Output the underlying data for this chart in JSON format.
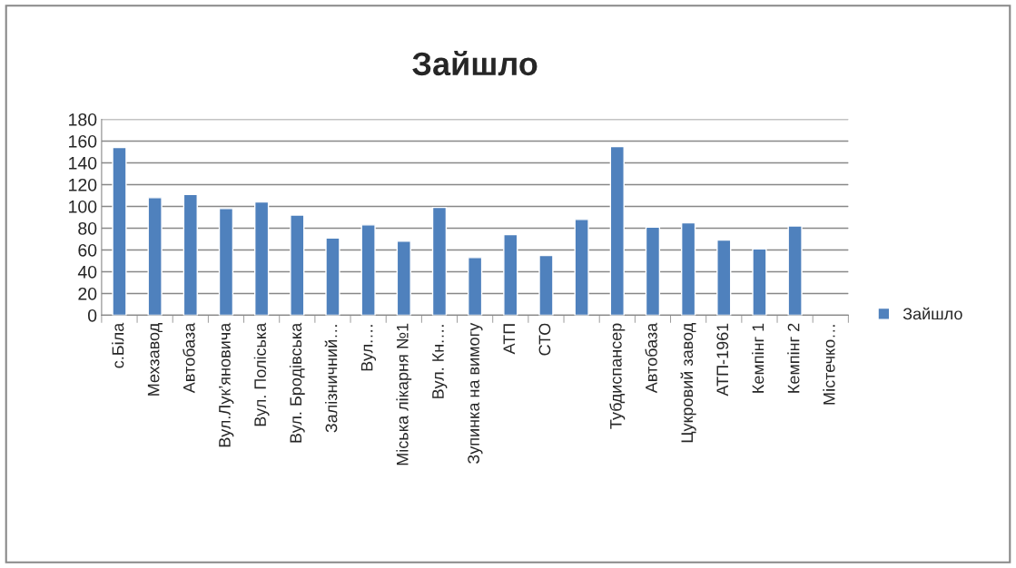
{
  "chart_data": {
    "type": "bar",
    "title": "Зайшло",
    "categories": [
      "с.Біла",
      "Мехзавод",
      "Автобаза",
      "Вул.Лук’яновича",
      "Вул. Поліська",
      "Вул. Бродівська",
      "Залізничний…",
      "Вул.…",
      "Міська лікарня №1",
      "Вул. Кн.…",
      "Зупинка на вимогу",
      "АТП",
      "СТО",
      null,
      "Тубдиспансер",
      "Автобаза",
      "Цукровий завод",
      "АТП-1961",
      "Кемпінг 1",
      "Кемпінг 2",
      "Містечко…"
    ],
    "series": [
      {
        "name": "Зайшло",
        "color": "#4f81bd",
        "values": [
          154,
          108,
          111,
          98,
          104,
          92,
          71,
          83,
          68,
          99,
          53,
          74,
          55,
          88,
          155,
          81,
          85,
          69,
          61,
          82,
          null
        ]
      }
    ],
    "ylim": [
      0,
      180
    ],
    "yticks": [
      0,
      20,
      40,
      60,
      80,
      100,
      120,
      140,
      160,
      180
    ],
    "grid": "y",
    "legend": "right"
  }
}
